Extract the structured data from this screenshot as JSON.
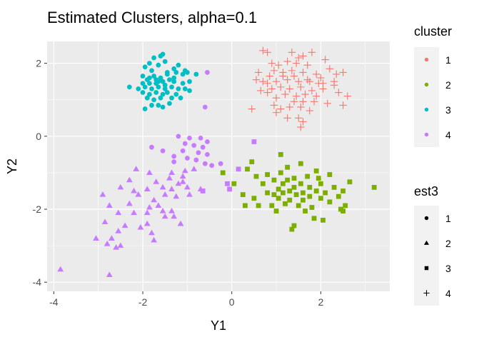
{
  "chart_data": {
    "type": "scatter",
    "title": "Estimated Clusters, alpha=0.1",
    "xlabel": "Y1",
    "ylabel": "Y2",
    "xlim": [
      -4.15,
      3.55
    ],
    "ylim": [
      -4.25,
      2.6
    ],
    "x_ticks": [
      -4,
      -2,
      0,
      2
    ],
    "y_ticks": [
      -4,
      -2,
      0,
      2
    ],
    "grid": true,
    "legends": [
      {
        "title": "cluster",
        "placement": "right",
        "entries": [
          {
            "label": "1",
            "color": "#F8766D"
          },
          {
            "label": "2",
            "color": "#7CAE00"
          },
          {
            "label": "3",
            "color": "#00BFC4"
          },
          {
            "label": "4",
            "color": "#C77CFF"
          }
        ]
      },
      {
        "title": "est3",
        "placement": "right",
        "entries": [
          {
            "label": "1",
            "shape": "circle"
          },
          {
            "label": "2",
            "shape": "triangle"
          },
          {
            "label": "3",
            "shape": "square"
          },
          {
            "label": "4",
            "shape": "plus"
          }
        ]
      }
    ],
    "series": [
      {
        "cluster": "1",
        "est3": "4",
        "color": "#F8766D",
        "shape": "plus",
        "points": [
          [
            0.7,
            2.35
          ],
          [
            0.8,
            2.3
          ],
          [
            1.35,
            2.3
          ],
          [
            1.5,
            2.15
          ],
          [
            1.6,
            2.2
          ],
          [
            1.8,
            2.3
          ],
          [
            2.1,
            2.1
          ],
          [
            0.9,
            2.0
          ],
          [
            1.05,
            1.95
          ],
          [
            1.25,
            2.05
          ],
          [
            1.45,
            2.0
          ],
          [
            1.7,
            1.95
          ],
          [
            2.2,
            1.85
          ],
          [
            2.5,
            1.75
          ],
          [
            0.6,
            1.75
          ],
          [
            0.95,
            1.8
          ],
          [
            1.15,
            1.75
          ],
          [
            1.35,
            1.8
          ],
          [
            1.6,
            1.75
          ],
          [
            1.9,
            1.7
          ],
          [
            2.35,
            1.7
          ],
          [
            0.55,
            1.55
          ],
          [
            0.8,
            1.45
          ],
          [
            1.0,
            1.5
          ],
          [
            1.25,
            1.55
          ],
          [
            1.5,
            1.5
          ],
          [
            1.75,
            1.5
          ],
          [
            2.05,
            1.45
          ],
          [
            2.3,
            1.5
          ],
          [
            0.65,
            1.25
          ],
          [
            0.9,
            1.3
          ],
          [
            1.1,
            1.35
          ],
          [
            1.3,
            1.3
          ],
          [
            1.55,
            1.35
          ],
          [
            1.8,
            1.25
          ],
          [
            2.05,
            1.3
          ],
          [
            2.3,
            1.4
          ],
          [
            2.4,
            1.2
          ],
          [
            1.2,
            1.15
          ],
          [
            1.45,
            1.1
          ],
          [
            1.65,
            1.15
          ],
          [
            1.9,
            1.1
          ],
          [
            1.0,
            1.05
          ],
          [
            2.6,
            1.1
          ],
          [
            1.4,
            0.95
          ],
          [
            1.6,
            0.95
          ],
          [
            1.85,
            0.95
          ],
          [
            2.15,
            0.9
          ],
          [
            1.55,
            0.8
          ],
          [
            0.95,
            0.85
          ],
          [
            0.45,
            0.75
          ],
          [
            1.1,
            0.75
          ],
          [
            1.3,
            0.8
          ],
          [
            2.5,
            0.85
          ],
          [
            1.75,
            0.7
          ],
          [
            1.0,
            0.65
          ],
          [
            1.5,
            0.5
          ],
          [
            1.25,
            0.5
          ],
          [
            1.55,
            0.25
          ],
          [
            1.6,
            0.4
          ],
          [
            0.85,
            1.65
          ],
          [
            1.7,
            1.55
          ],
          [
            2.0,
            1.6
          ],
          [
            1.4,
            1.65
          ],
          [
            0.8,
            1.2
          ],
          [
            1.95,
            1.45
          ],
          [
            1.15,
            1.65
          ],
          [
            0.7,
            1.5
          ]
        ]
      },
      {
        "cluster": "2",
        "est3": "3",
        "color": "#7CAE00",
        "shape": "square",
        "points": [
          [
            -0.2,
            -1.0
          ],
          [
            0.05,
            -1.3
          ],
          [
            0.25,
            -1.6
          ],
          [
            0.35,
            -0.9
          ],
          [
            0.5,
            -1.7
          ],
          [
            0.55,
            -1.1
          ],
          [
            0.6,
            -1.9
          ],
          [
            0.7,
            -1.3
          ],
          [
            0.8,
            -1.05
          ],
          [
            0.8,
            -1.55
          ],
          [
            0.9,
            -1.9
          ],
          [
            0.95,
            -1.2
          ],
          [
            1.05,
            -1.45
          ],
          [
            1.05,
            -1.7
          ],
          [
            1.0,
            -2.05
          ],
          [
            1.1,
            -1.0
          ],
          [
            1.15,
            -1.3
          ],
          [
            1.15,
            -1.55
          ],
          [
            1.2,
            -1.85
          ],
          [
            1.25,
            -1.2
          ],
          [
            1.3,
            -1.5
          ],
          [
            1.3,
            -1.75
          ],
          [
            1.35,
            -2.55
          ],
          [
            1.4,
            -1.15
          ],
          [
            1.4,
            -1.4
          ],
          [
            1.45,
            -1.6
          ],
          [
            1.5,
            -1.9
          ],
          [
            1.55,
            -0.75
          ],
          [
            1.55,
            -1.3
          ],
          [
            1.6,
            -1.55
          ],
          [
            1.6,
            -1.75
          ],
          [
            1.65,
            -2.05
          ],
          [
            1.7,
            -1.1
          ],
          [
            1.75,
            -1.4
          ],
          [
            1.75,
            -1.65
          ],
          [
            1.8,
            -1.95
          ],
          [
            1.85,
            -2.25
          ],
          [
            1.9,
            -0.95
          ],
          [
            1.9,
            -1.5
          ],
          [
            2.0,
            -1.3
          ],
          [
            2.0,
            -1.7
          ],
          [
            2.05,
            -2.3
          ],
          [
            2.1,
            -1.55
          ],
          [
            2.2,
            -1.05
          ],
          [
            2.2,
            -1.8
          ],
          [
            2.3,
            -1.4
          ],
          [
            2.4,
            -1.65
          ],
          [
            2.45,
            -2.0
          ],
          [
            2.5,
            -1.5
          ],
          [
            2.5,
            -2.05
          ],
          [
            2.55,
            -1.9
          ],
          [
            2.65,
            -1.25
          ],
          [
            1.4,
            -2.45
          ],
          [
            0.95,
            -1.6
          ],
          [
            1.1,
            -0.5
          ],
          [
            0.45,
            -0.7
          ],
          [
            3.2,
            -1.4
          ],
          [
            0.3,
            -1.9
          ],
          [
            1.25,
            -0.85
          ],
          [
            1.95,
            -1.15
          ]
        ]
      },
      {
        "cluster": "3",
        "est3": "1",
        "color": "#00BFC4",
        "shape": "circle",
        "points": [
          [
            -1.55,
            2.25
          ],
          [
            -1.6,
            2.2
          ],
          [
            -1.75,
            2.15
          ],
          [
            -1.85,
            2.0
          ],
          [
            -1.95,
            1.9
          ],
          [
            -1.8,
            1.8
          ],
          [
            -1.65,
            1.95
          ],
          [
            -1.5,
            2.05
          ],
          [
            -1.2,
            1.95
          ],
          [
            -1.3,
            1.85
          ],
          [
            -1.25,
            1.75
          ],
          [
            -1.05,
            1.8
          ],
          [
            -1.0,
            1.75
          ],
          [
            -0.8,
            1.7
          ],
          [
            -1.45,
            1.7
          ],
          [
            -1.6,
            1.6
          ],
          [
            -1.75,
            1.65
          ],
          [
            -1.9,
            1.55
          ],
          [
            -2.0,
            1.45
          ],
          [
            -1.85,
            1.45
          ],
          [
            -1.7,
            1.45
          ],
          [
            -1.55,
            1.5
          ],
          [
            -1.4,
            1.55
          ],
          [
            -1.3,
            1.5
          ],
          [
            -1.1,
            1.45
          ],
          [
            -0.95,
            1.5
          ],
          [
            -2.3,
            1.35
          ],
          [
            -2.1,
            1.3
          ],
          [
            -1.95,
            1.35
          ],
          [
            -1.8,
            1.3
          ],
          [
            -1.65,
            1.35
          ],
          [
            -1.5,
            1.3
          ],
          [
            -1.35,
            1.35
          ],
          [
            -1.2,
            1.3
          ],
          [
            -2.0,
            1.2
          ],
          [
            -1.85,
            1.15
          ],
          [
            -1.7,
            1.2
          ],
          [
            -1.55,
            1.15
          ],
          [
            -1.45,
            1.2
          ],
          [
            -1.35,
            1.05
          ],
          [
            -1.6,
            1.05
          ],
          [
            -1.75,
            1.0
          ],
          [
            -1.9,
            1.05
          ],
          [
            -1.25,
            1.15
          ],
          [
            -1.15,
            1.05
          ],
          [
            -1.05,
            1.3
          ],
          [
            -0.95,
            1.25
          ],
          [
            -1.8,
            0.85
          ],
          [
            -1.65,
            0.85
          ],
          [
            -1.4,
            0.9
          ],
          [
            -1.55,
            0.8
          ],
          [
            -1.95,
            0.75
          ],
          [
            -1.45,
            1.75
          ],
          [
            -1.7,
            1.55
          ],
          [
            -2.0,
            1.65
          ],
          [
            -1.3,
            1.6
          ],
          [
            -1.1,
            1.7
          ],
          [
            -1.5,
            1.4
          ],
          [
            -1.65,
            1.5
          ],
          [
            -1.85,
            1.6
          ]
        ]
      },
      {
        "cluster": "4",
        "est3": "1",
        "color": "#C77CFF",
        "shape": "circle",
        "points": [
          [
            -0.55,
            1.75
          ],
          [
            -0.6,
            0.8
          ],
          [
            -1.2,
            0.0
          ],
          [
            -0.95,
            -0.05
          ],
          [
            -0.7,
            -0.05
          ],
          [
            -0.55,
            -0.15
          ],
          [
            -1.05,
            -0.2
          ],
          [
            -0.85,
            -0.25
          ],
          [
            -0.65,
            -0.3
          ],
          [
            -1.55,
            -0.4
          ],
          [
            -1.8,
            -0.3
          ],
          [
            -1.1,
            -0.4
          ],
          [
            -0.75,
            -0.45
          ],
          [
            -0.55,
            -0.5
          ],
          [
            -1.3,
            -0.55
          ],
          [
            -1.0,
            -0.6
          ],
          [
            -0.8,
            -0.65
          ],
          [
            -0.6,
            -0.75
          ],
          [
            -0.45,
            -0.8
          ],
          [
            -0.25,
            -0.75
          ],
          [
            -1.3,
            -0.7
          ]
        ]
      },
      {
        "cluster": "4",
        "est3": "2",
        "color": "#C77CFF",
        "shape": "triangle",
        "points": [
          [
            -2.15,
            -0.9
          ],
          [
            -1.85,
            -1.0
          ],
          [
            -1.35,
            -1.0
          ],
          [
            -1.05,
            -0.95
          ],
          [
            -0.85,
            -0.9
          ],
          [
            -1.1,
            -1.1
          ],
          [
            -2.3,
            -1.2
          ],
          [
            -1.7,
            -1.25
          ],
          [
            -1.4,
            -1.15
          ],
          [
            -1.2,
            -1.3
          ],
          [
            -2.5,
            -1.4
          ],
          [
            -2.2,
            -1.5
          ],
          [
            -1.9,
            -1.45
          ],
          [
            -1.55,
            -1.4
          ],
          [
            -1.35,
            -1.45
          ],
          [
            -1.0,
            -1.4
          ],
          [
            -0.7,
            -1.45
          ],
          [
            -2.1,
            -1.6
          ],
          [
            -1.75,
            -1.75
          ],
          [
            -1.5,
            -1.6
          ],
          [
            -1.25,
            -1.65
          ],
          [
            -0.95,
            -1.6
          ],
          [
            -2.9,
            -1.6
          ],
          [
            -2.3,
            -1.85
          ],
          [
            -1.85,
            -1.95
          ],
          [
            -1.65,
            -1.9
          ],
          [
            -2.75,
            -1.9
          ],
          [
            -1.9,
            -2.1
          ],
          [
            -2.55,
            -2.1
          ],
          [
            -2.2,
            -2.1
          ],
          [
            -1.55,
            -2.05
          ],
          [
            -1.35,
            -2.05
          ],
          [
            -2.85,
            -2.35
          ],
          [
            -2.4,
            -2.45
          ],
          [
            -1.9,
            -2.4
          ],
          [
            -1.5,
            -2.2
          ],
          [
            -1.3,
            -2.2
          ],
          [
            -1.15,
            -2.4
          ],
          [
            -1.8,
            -2.65
          ],
          [
            -2.05,
            -2.5
          ],
          [
            -2.55,
            -2.6
          ],
          [
            -3.05,
            -2.8
          ],
          [
            -2.7,
            -2.8
          ],
          [
            -2.5,
            -3.0
          ],
          [
            -2.8,
            -2.95
          ],
          [
            -2.6,
            -3.05
          ],
          [
            -1.75,
            -2.85
          ],
          [
            -2.75,
            -3.8
          ],
          [
            -3.85,
            -3.65
          ],
          [
            -1.1,
            -1.25
          ]
        ]
      },
      {
        "cluster": "4",
        "est3": "3",
        "color": "#C77CFF",
        "shape": "square",
        "points": [
          [
            0.5,
            -0.15
          ],
          [
            -0.1,
            -1.3
          ],
          [
            -0.05,
            -1.45
          ],
          [
            -0.65,
            -1.5
          ],
          [
            0.15,
            -0.9
          ]
        ]
      }
    ]
  }
}
